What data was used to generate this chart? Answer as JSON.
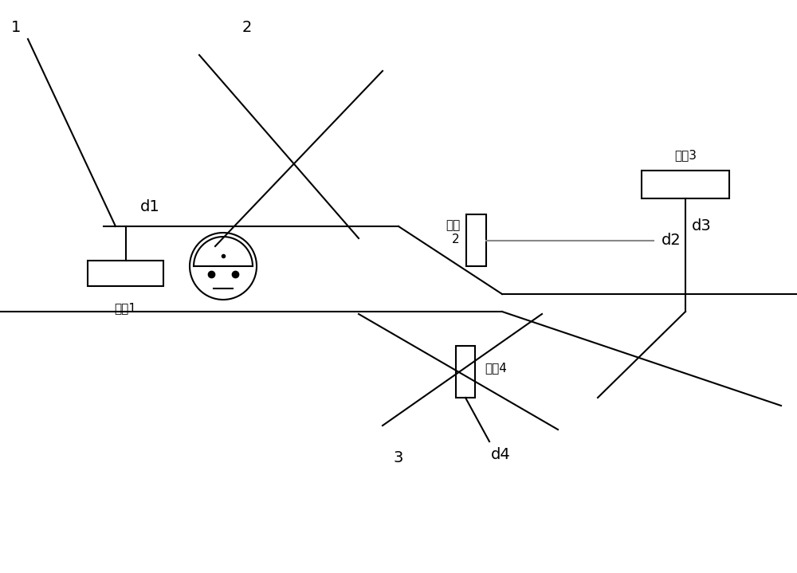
{
  "bg_color": "#ffffff",
  "line_color": "#000000",
  "gray_line_color": "#888888",
  "fig_width": 10.0,
  "fig_height": 7.19,
  "dpi": 100,
  "label_1": "1",
  "label_2": "2",
  "label_3": "3",
  "label_d1": "d1",
  "label_d2": "d2",
  "label_d3": "d3",
  "label_d4": "d4",
  "label_shebei1": "设备1",
  "label_shebei2": "设备\n2",
  "label_shebei3": "设备3",
  "label_shebei4": "设备4",
  "font_size_label": 14,
  "font_size_small": 11
}
